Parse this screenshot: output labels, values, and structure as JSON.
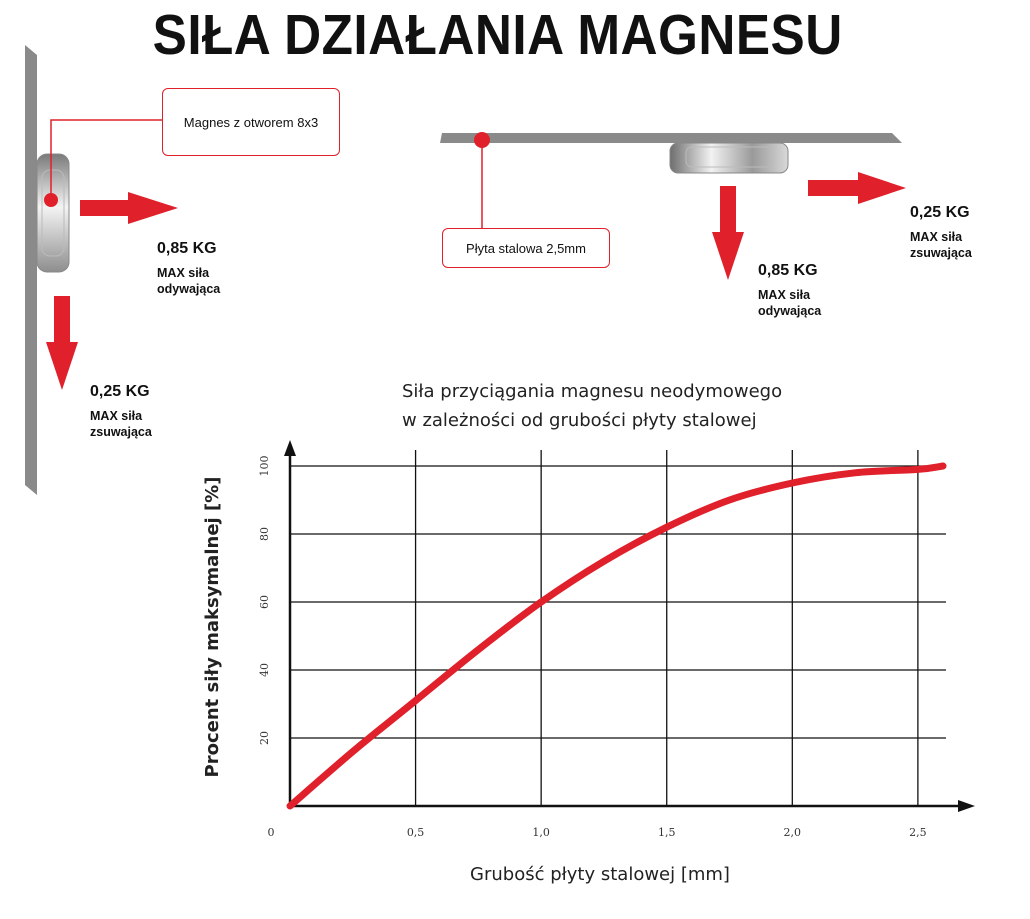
{
  "title": "SIŁA DZIAŁANIA MAGNESU",
  "colors": {
    "accent": "#e0202a",
    "steel": "#8a8a8a",
    "grid": "#111111"
  },
  "left_diagram": {
    "callout": "Magnes z otworem 8x3",
    "pull_value": "0,85 KG",
    "pull_desc": "MAX siła\nodywająca",
    "slide_value": "0,25 KG",
    "slide_desc": "MAX siła\nzsuwająca"
  },
  "right_diagram": {
    "callout": "Płyta stalowa 2,5mm",
    "pull_value": "0,85 KG",
    "pull_desc": "MAX siła\nodywająca",
    "slide_value": "0,25 KG",
    "slide_desc": "MAX siła\nzsuwająca"
  },
  "chart_data": {
    "type": "line",
    "title_line1": "Siła przyciągania magnesu neodymowego",
    "title_line2": "w zależności od grubości płyty stalowej",
    "xlabel": "Grubość płyty stalowej [mm]",
    "ylabel": "Procent siły maksymalnej [%]",
    "xlim": [
      0,
      2.6
    ],
    "ylim": [
      0,
      100
    ],
    "x_ticks": [
      0,
      0.5,
      1.0,
      1.5,
      2.0,
      2.5
    ],
    "x_tick_labels": [
      "0",
      "0,5",
      "1,0",
      "1,5",
      "2,0",
      "2,5"
    ],
    "y_ticks": [
      20,
      40,
      60,
      80,
      100
    ],
    "y_tick_labels": [
      "20",
      "40",
      "60",
      "80",
      "100"
    ],
    "grid": true,
    "series": [
      {
        "color": "#e0202a",
        "x": [
          0,
          0.25,
          0.5,
          0.75,
          1.0,
          1.25,
          1.5,
          1.75,
          2.0,
          2.25,
          2.5,
          2.6
        ],
        "y": [
          0,
          16,
          31,
          46,
          60,
          72,
          82,
          90,
          95,
          98,
          99,
          100
        ]
      }
    ]
  }
}
